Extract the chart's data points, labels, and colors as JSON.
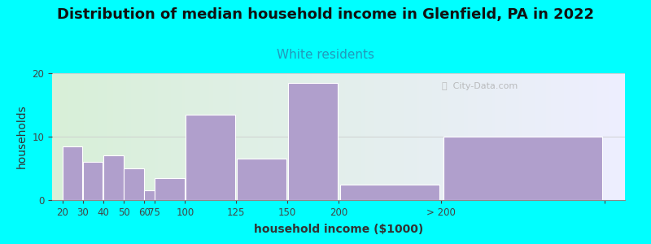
{
  "title": "Distribution of median household income in Glenfield, PA in 2022",
  "subtitle": "White residents",
  "xlabel": "household income ($1000)",
  "ylabel": "households",
  "background_color": "#00FFFF",
  "plot_bg_gradient_left": "#d8f0d8",
  "plot_bg_gradient_right": "#eeeeff",
  "bar_color": "#b09fcc",
  "bar_edgecolor": "#ffffff",
  "categories": [
    "20",
    "30",
    "40",
    "50",
    "60",
    "75",
    "100",
    "125",
    "150",
    "200",
    "> 200"
  ],
  "values": [
    8.5,
    6,
    7,
    5,
    1.5,
    3.5,
    13.5,
    6.5,
    18.5,
    2.5,
    10
  ],
  "bar_lefts": [
    15,
    25,
    35,
    45,
    55,
    60,
    75,
    100,
    125,
    150,
    200
  ],
  "bar_widths": [
    10,
    10,
    10,
    10,
    5,
    15,
    25,
    25,
    25,
    50,
    80
  ],
  "tick_labels": [
    "20",
    "30",
    "40",
    "50",
    "60",
    "75",
    "100",
    "125",
    "150",
    "200",
    "> 200",
    ""
  ],
  "xlim": [
    10,
    290
  ],
  "ylim": [
    0,
    20
  ],
  "yticks": [
    0,
    10,
    20
  ],
  "title_fontsize": 13,
  "subtitle_fontsize": 11,
  "subtitle_color": "#2299bb",
  "axis_label_fontsize": 10,
  "tick_fontsize": 8.5
}
